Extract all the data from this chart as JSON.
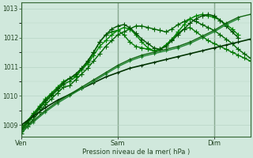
{
  "bg_color": "#d0e8dc",
  "grid_color": "#b0d0c0",
  "line_colors": [
    "#005500",
    "#006600",
    "#007700",
    "#228833",
    "#116611",
    "#004400",
    "#337733"
  ],
  "ylabel": "Pression niveau de la mer( hPa )",
  "ylim": [
    1008.6,
    1013.2
  ],
  "yticks": [
    1009,
    1010,
    1011,
    1012,
    1013
  ],
  "xtick_labels": [
    "Ven",
    "Sam",
    "Dim"
  ],
  "xtick_positions": [
    0,
    48,
    96
  ],
  "vline_positions": [
    0,
    48,
    96
  ],
  "total_hours": 114,
  "series": [
    {
      "x": [
        0,
        3,
        6,
        9,
        12,
        15,
        18,
        21,
        24,
        27,
        30,
        33,
        36,
        39,
        42,
        45,
        48,
        51,
        54,
        57,
        60,
        63,
        66,
        69,
        72,
        75,
        78,
        81,
        84,
        87,
        90,
        93,
        96,
        99,
        102,
        105,
        108,
        111,
        114
      ],
      "y": [
        1008.7,
        1008.95,
        1009.2,
        1009.45,
        1009.7,
        1009.9,
        1010.1,
        1010.3,
        1010.35,
        1010.55,
        1010.75,
        1010.95,
        1011.2,
        1011.45,
        1011.7,
        1011.9,
        1012.1,
        1012.2,
        1012.3,
        1012.4,
        1012.4,
        1012.35,
        1012.3,
        1012.25,
        1012.2,
        1012.3,
        1012.45,
        1012.55,
        1012.65,
        1012.55,
        1012.45,
        1012.35,
        1012.25,
        1012.1,
        1011.95,
        1011.8,
        1011.6,
        1011.45,
        1011.3
      ],
      "color": "#006600",
      "lw": 1.0,
      "marker": "P",
      "ms": 2.5
    },
    {
      "x": [
        0,
        3,
        6,
        9,
        12,
        15,
        18,
        21,
        24,
        27,
        30,
        33,
        36,
        39,
        42,
        45,
        48,
        51,
        54,
        57,
        60,
        63,
        66,
        69,
        72,
        75,
        78,
        81,
        84,
        87,
        90,
        93,
        96,
        99,
        102,
        105,
        108,
        111,
        114
      ],
      "y": [
        1008.8,
        1009.05,
        1009.3,
        1009.55,
        1009.8,
        1010.0,
        1010.2,
        1010.4,
        1010.5,
        1010.65,
        1010.9,
        1011.15,
        1011.5,
        1011.85,
        1012.1,
        1012.2,
        1012.25,
        1012.1,
        1011.85,
        1011.7,
        1011.65,
        1011.6,
        1011.55,
        1011.6,
        1011.75,
        1011.95,
        1012.15,
        1012.3,
        1012.35,
        1012.2,
        1012.05,
        1011.9,
        1011.8,
        1011.7,
        1011.6,
        1011.5,
        1011.4,
        1011.3,
        1011.2
      ],
      "color": "#007700",
      "lw": 1.0,
      "marker": "P",
      "ms": 2.5
    },
    {
      "x": [
        0,
        3,
        6,
        9,
        12,
        15,
        18,
        21,
        24,
        27,
        30,
        33,
        36,
        39,
        42,
        45,
        48,
        51,
        54,
        57,
        60,
        63,
        66,
        69,
        72,
        75,
        78,
        81,
        84,
        87,
        90,
        93,
        96,
        99,
        102,
        105,
        108
      ],
      "y": [
        1008.9,
        1009.15,
        1009.4,
        1009.65,
        1009.9,
        1010.1,
        1010.3,
        1010.5,
        1010.6,
        1010.7,
        1010.9,
        1011.1,
        1011.4,
        1011.7,
        1011.9,
        1012.1,
        1012.25,
        1012.35,
        1012.3,
        1012.1,
        1011.85,
        1011.65,
        1011.55,
        1011.6,
        1011.75,
        1011.95,
        1012.2,
        1012.45,
        1012.65,
        1012.75,
        1012.8,
        1012.75,
        1012.7,
        1012.6,
        1012.45,
        1012.3,
        1012.1
      ],
      "color": "#008800",
      "lw": 1.0,
      "marker": "P",
      "ms": 2.5
    },
    {
      "x": [
        0,
        3,
        6,
        9,
        12,
        15,
        18,
        21,
        24,
        27,
        30,
        33,
        36,
        39,
        42,
        45,
        48,
        51,
        54,
        57,
        60,
        63,
        66,
        69,
        72,
        75,
        78,
        81,
        84,
        87,
        90,
        93,
        96,
        99,
        102,
        105,
        108
      ],
      "y": [
        1008.85,
        1009.1,
        1009.35,
        1009.6,
        1009.85,
        1010.05,
        1010.25,
        1010.45,
        1010.6,
        1010.75,
        1010.95,
        1011.2,
        1011.5,
        1011.85,
        1012.1,
        1012.3,
        1012.4,
        1012.45,
        1012.35,
        1012.15,
        1011.95,
        1011.8,
        1011.65,
        1011.6,
        1011.7,
        1011.9,
        1012.1,
        1012.3,
        1012.5,
        1012.65,
        1012.75,
        1012.8,
        1012.75,
        1012.6,
        1012.4,
        1012.2,
        1012.0
      ],
      "color": "#005500",
      "lw": 1.0,
      "marker": "P",
      "ms": 2.5
    },
    {
      "x": [
        0,
        6,
        12,
        18,
        24,
        30,
        36,
        42,
        48,
        54,
        60,
        66,
        72,
        78,
        84,
        90,
        96,
        102,
        108,
        114
      ],
      "y": [
        1009.0,
        1009.3,
        1009.6,
        1009.85,
        1010.05,
        1010.25,
        1010.45,
        1010.65,
        1010.8,
        1010.95,
        1011.05,
        1011.15,
        1011.25,
        1011.35,
        1011.45,
        1011.55,
        1011.65,
        1011.75,
        1011.85,
        1011.95
      ],
      "color": "#003300",
      "lw": 1.2,
      "marker": "P",
      "ms": 2.0
    },
    {
      "x": [
        0,
        6,
        12,
        18,
        24,
        30,
        36,
        42,
        48,
        54,
        60,
        66,
        72,
        78,
        84,
        90,
        96,
        102,
        108
      ],
      "y": [
        1008.75,
        1009.1,
        1009.45,
        1009.75,
        1010.0,
        1010.25,
        1010.5,
        1010.75,
        1011.0,
        1011.2,
        1011.35,
        1011.45,
        1011.55,
        1011.65,
        1011.8,
        1012.0,
        1012.2,
        1012.45,
        1012.65
      ],
      "color": "#228833",
      "lw": 1.0,
      "marker": "P",
      "ms": 2.0
    },
    {
      "x": [
        0,
        6,
        12,
        18,
        24,
        30,
        36,
        42,
        48,
        54,
        60,
        66,
        72,
        78,
        84,
        90,
        96,
        102,
        108,
        114
      ],
      "y": [
        1008.8,
        1009.15,
        1009.5,
        1009.8,
        1010.05,
        1010.3,
        1010.55,
        1010.8,
        1011.05,
        1011.25,
        1011.4,
        1011.5,
        1011.6,
        1011.7,
        1011.85,
        1012.05,
        1012.25,
        1012.5,
        1012.7,
        1012.8
      ],
      "color": "#116611",
      "lw": 1.0,
      "marker": "P",
      "ms": 2.0
    }
  ]
}
